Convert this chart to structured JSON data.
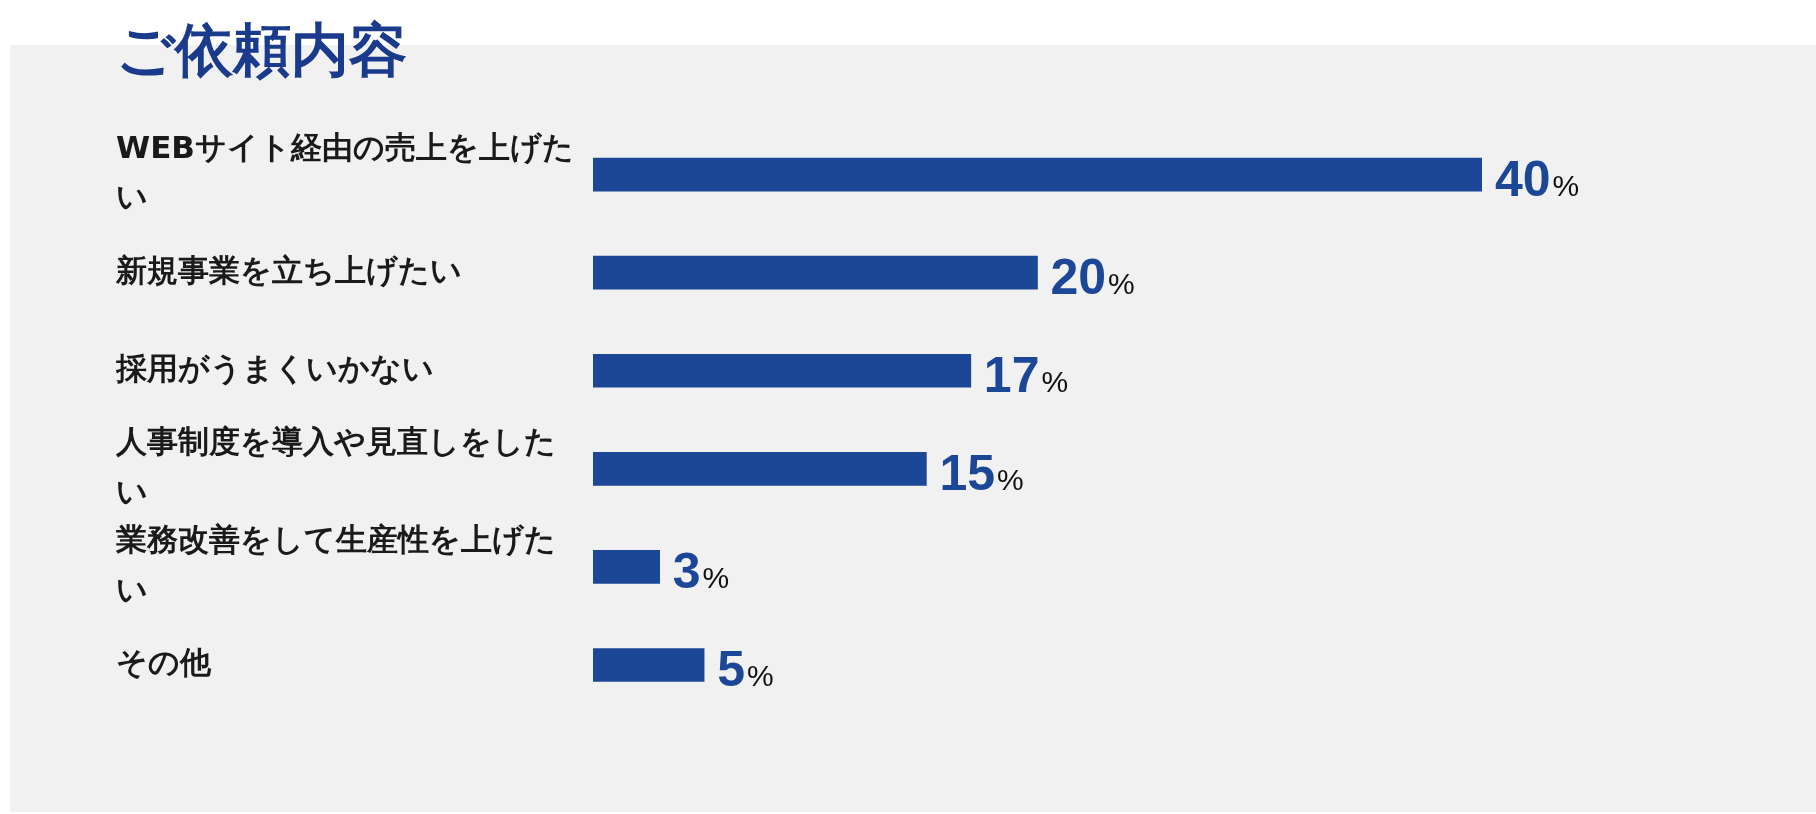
{
  "chart_data": {
    "type": "bar",
    "title": "ご依頼内容",
    "orientation": "horizontal",
    "categories": [
      "WEBサイト経由の売上を上げたい",
      "新規事業を立ち上げたい",
      "採用がうまくいかない",
      "人事制度を導入や見直しをしたい",
      "業務改善をして生産性を上げたい",
      "その他"
    ],
    "values": [
      40,
      20,
      17,
      15,
      3,
      5
    ],
    "color": "#1c4797",
    "value_labels": [
      "40%",
      "20%",
      "17%",
      "15%",
      "3%",
      "5%"
    ],
    "tick_labels": "y"
  }
}
